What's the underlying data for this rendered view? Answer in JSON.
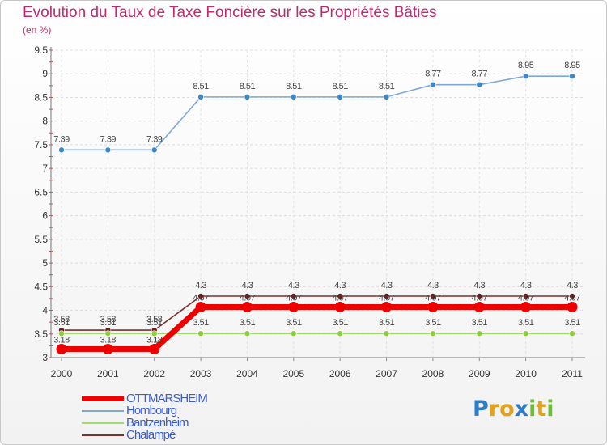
{
  "title": "Evolution du Taux de Taxe Foncière sur les Propriétés Bâties",
  "unit": "(en %)",
  "logo": {
    "text": "Proxiti",
    "letters": [
      {
        "ch": "P",
        "color": "#2e7dc9"
      },
      {
        "ch": "r",
        "color": "#e2a21b"
      },
      {
        "ch": "o",
        "color": "#e2a21b"
      },
      {
        "ch": "x",
        "color": "#2e7dc9"
      },
      {
        "ch": "i",
        "color": "#6cbf2f"
      },
      {
        "ch": "t",
        "color": "#e2a21b"
      },
      {
        "ch": "i",
        "color": "#6cbf2f"
      }
    ]
  },
  "chart_data": {
    "type": "line",
    "title": "Evolution du Taux de Taxe Foncière sur les Propriétés Bâties",
    "ylabel": "(en %)",
    "xlabel": "",
    "ylim": [
      3,
      9.5
    ],
    "yticks": [
      "3",
      "3.5",
      "4",
      "4.5",
      "5",
      "5.5",
      "6",
      "6.5",
      "7",
      "7.5",
      "8",
      "8.5",
      "9",
      "9.5"
    ],
    "categories": [
      "2000",
      "2001",
      "2002",
      "2003",
      "2004",
      "2005",
      "2006",
      "2007",
      "2008",
      "2009",
      "2010",
      "2011"
    ],
    "series": [
      {
        "name": "Chalampé",
        "color": "#7a3030",
        "marker": "#6a1a1a",
        "values": [
          3.58,
          3.58,
          3.58,
          4.3,
          4.3,
          4.3,
          4.3,
          4.3,
          4.3,
          4.3,
          4.3,
          4.3
        ],
        "labels": [
          "3.58",
          "3.58",
          "3.58",
          "4.3",
          "4.3",
          "4.3",
          "4.3",
          "4.3",
          "4.3",
          "4.3",
          "4.3",
          "4.3"
        ]
      },
      {
        "name": "Bantzenheim",
        "color": "#9fdc6a",
        "marker": "#8ccd3a",
        "values": [
          3.51,
          3.51,
          3.51,
          3.51,
          3.51,
          3.51,
          3.51,
          3.51,
          3.51,
          3.51,
          3.51,
          3.51
        ],
        "labels": [
          "3.51",
          "3.51",
          "3.51",
          "3.51",
          "3.51",
          "3.51",
          "3.51",
          "3.51",
          "3.51",
          "3.51",
          "3.51",
          "3.51"
        ]
      },
      {
        "name": "Hombourg",
        "color": "#7fa8d6",
        "marker": "#3b88c8",
        "values": [
          7.39,
          7.39,
          7.39,
          8.51,
          8.51,
          8.51,
          8.51,
          8.51,
          8.77,
          8.77,
          8.95,
          8.95
        ],
        "labels": [
          "7.39",
          "7.39",
          "7.39",
          "8.51",
          "8.51",
          "8.51",
          "8.51",
          "8.51",
          "8.77",
          "8.77",
          "8.95",
          "8.95"
        ]
      },
      {
        "name": "OTTMARSHEIM",
        "color": "#ee0000",
        "marker": "#ee0000",
        "values": [
          3.18,
          3.18,
          3.18,
          4.07,
          4.07,
          4.07,
          4.07,
          4.07,
          4.07,
          4.07,
          4.07,
          4.07
        ],
        "labels": [
          "3.18",
          "3.18",
          "3.18",
          "4.07",
          "4.07",
          "4.07",
          "4.07",
          "4.07",
          "4.07",
          "4.07",
          "4.07",
          "4.07"
        ]
      }
    ],
    "legend": [
      {
        "name": "OTTMARSHEIM",
        "color": "#ee0000",
        "thick": true
      },
      {
        "name": "Hombourg",
        "color": "#7fa8d6",
        "thick": false
      },
      {
        "name": "Bantzenheim",
        "color": "#9fdc6a",
        "thick": false
      },
      {
        "name": "Chalampé",
        "color": "#7a3030",
        "thick": false
      }
    ]
  }
}
